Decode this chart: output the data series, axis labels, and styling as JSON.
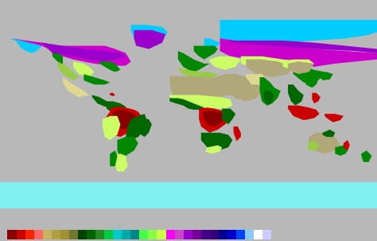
{
  "ocean_color": "#b8b8b8",
  "bottom_strip_color": "#80f0f0",
  "figsize": [
    4.74,
    3.03
  ],
  "dpi": 100,
  "legend_colors": [
    "#8B0000",
    "#CC0000",
    "#FF2200",
    "#FF6666",
    "#C8B460",
    "#B0A040",
    "#A09030",
    "#707830",
    "#004400",
    "#006400",
    "#228B22",
    "#00CC44",
    "#00CCCC",
    "#00AAAA",
    "#008888",
    "#44FF44",
    "#88FF44",
    "#CCFF44",
    "#FF00FF",
    "#CC44CC",
    "#9900CC",
    "#770099",
    "#440088",
    "#330077",
    "#000099",
    "#0000CC",
    "#0044FF",
    "#88CCFF",
    "#FFFFFF",
    "#CCCCFF"
  ],
  "biomes": {
    "ice_tundra": "#00ccff",
    "tundra": "#9900cc",
    "boreal": "#cc00cc",
    "temperate_forest": "#008800",
    "temperate_grassland": "#ccff66",
    "tropical_forest": "#004400",
    "tropical_savanna": "#006600",
    "tropical_red": "#cc0000",
    "tropical_darkred": "#880000",
    "desert": "#b0a878",
    "desert_scrub": "#e0d890",
    "mediterranean": "#99cc44",
    "grassland": "#ccff66",
    "wetland": "#00aaaa"
  }
}
